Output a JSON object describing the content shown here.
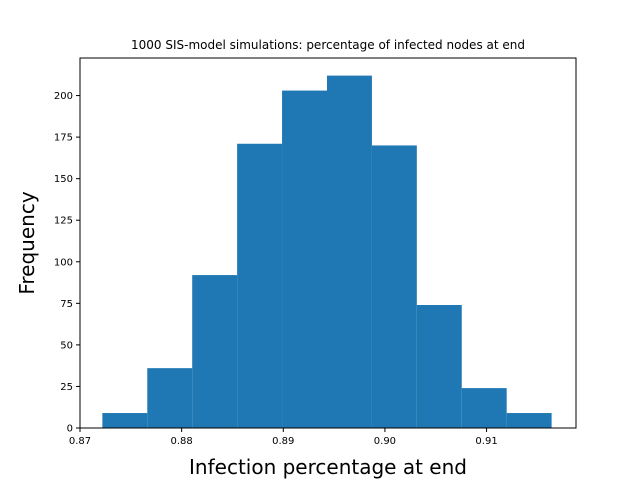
{
  "chart_data": {
    "type": "bar",
    "subtype": "histogram",
    "title": "1000 SIS-model simulations: percentage of infected nodes at end",
    "xlabel": "Infection percentage at end",
    "ylabel": "Frequency",
    "bin_edges": [
      0.8722,
      0.87662,
      0.88104,
      0.88546,
      0.88988,
      0.8943,
      0.89872,
      0.90314,
      0.90756,
      0.91198,
      0.9164
    ],
    "values": [
      9,
      36,
      92,
      171,
      203,
      212,
      170,
      74,
      24,
      9
    ],
    "xlim": [
      0.87,
      0.9188
    ],
    "ylim": [
      0,
      222.6
    ],
    "xticks": [
      0.87,
      0.88,
      0.89,
      0.9,
      0.91
    ],
    "xtick_labels": [
      "0.87",
      "0.88",
      "0.89",
      "0.90",
      "0.91"
    ],
    "yticks": [
      0,
      25,
      50,
      75,
      100,
      125,
      150,
      175,
      200
    ],
    "ytick_labels": [
      "0",
      "25",
      "50",
      "75",
      "100",
      "125",
      "150",
      "175",
      "200"
    ],
    "bar_color": "#1f77b4",
    "grid": false,
    "legend": "none"
  }
}
